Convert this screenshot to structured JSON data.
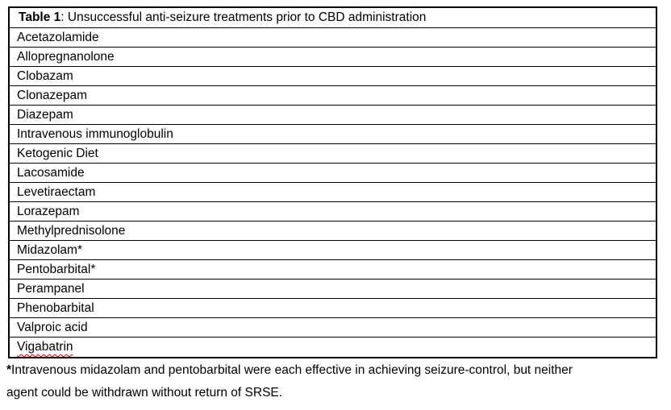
{
  "table": {
    "caption_bold": "Table 1",
    "caption_rest": ": Unsuccessful anti-seizure treatments prior to CBD administration",
    "rows": [
      "Acetazolamide",
      "Allopregnanolone",
      "Clobazam",
      "Clonazepam",
      "Diazepam",
      "Intravenous immunoglobulin",
      "Ketogenic Diet",
      "Lacosamide",
      "Levetiraectam",
      "Lorazepam",
      "Methylprednisolone",
      "Midazolam*",
      "Pentobarbital*",
      "Perampanel",
      "Phenobarbital",
      "Valproic acid",
      "Vigabatrin"
    ]
  },
  "footnote": {
    "marker": "*",
    "line1": "Intravenous midazolam and pentobarbital were each effective in achieving seizure-control, but neither",
    "line2": "agent could be withdrawn without return of SRSE."
  },
  "colors": {
    "background": "#ffffff",
    "text": "#000000",
    "table_border": "#000000",
    "spellcheck_underline": "#e00000"
  }
}
